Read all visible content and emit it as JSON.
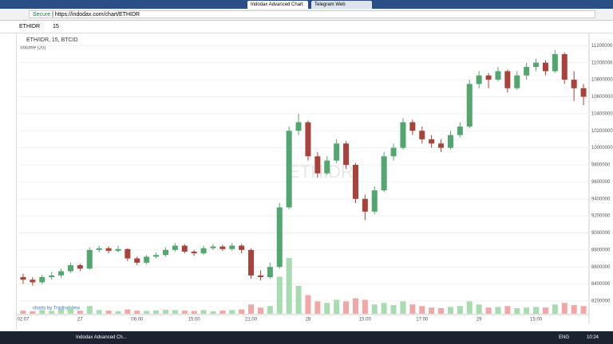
{
  "browser": {
    "tabs": [
      "Indodax Advanced Chart",
      "Telegram Web"
    ],
    "secure": "Secure",
    "url": "https://indodax.com/chart/ETHIDR"
  },
  "toolbar": {
    "symbol": "ETHIDR",
    "interval": "15"
  },
  "chart_data": {
    "type": "candlestick",
    "title": "ETH/IDR, 15, BTCID",
    "volume_title": "Volume (20)",
    "watermark": "ETHIDR",
    "credit": "charts by TradingView",
    "up_color": "#53a66f",
    "down_color": "#a8423b",
    "volume_up_color": "#a8dbb0",
    "volume_down_color": "#f2a7a7",
    "categories": [
      "02:07",
      null,
      null,
      null,
      null,
      null,
      "27",
      null,
      null,
      null,
      null,
      null,
      "06:00",
      null,
      null,
      null,
      null,
      null,
      "15:00",
      null,
      null,
      null,
      null,
      null,
      "21:00",
      null,
      null,
      null,
      null,
      null,
      "28",
      null,
      null,
      null,
      null,
      null,
      "15:00",
      null,
      null,
      null,
      null,
      null,
      "17:00",
      null,
      null,
      null,
      null,
      null,
      "29",
      null,
      null,
      null,
      null,
      null,
      "15:00",
      null,
      null,
      null,
      null,
      null
    ],
    "open": [
      8480000,
      8450000,
      8420000,
      8480000,
      8500000,
      8550000,
      8620000,
      8580000,
      8800000,
      8820000,
      8790000,
      8810000,
      8700000,
      8650000,
      8720000,
      8740000,
      8800000,
      8850000,
      8780000,
      8760000,
      8820000,
      8840000,
      8810000,
      8850000,
      8800000,
      8500000,
      8480000,
      8600000,
      9300000,
      10200000,
      10300000,
      9900000,
      9700000,
      9850000,
      10050000,
      9800000,
      9400000,
      9250000,
      9500000,
      9900000,
      10000000,
      10300000,
      10200000,
      10100000,
      10050000,
      10000000,
      10150000,
      10250000,
      10750000,
      10850000,
      10800000,
      10900000,
      10700000,
      10850000,
      10950000,
      11000000,
      10900000,
      11100000,
      10800000,
      10700000
    ],
    "high": [
      8520000,
      8480000,
      8510000,
      8540000,
      8580000,
      8650000,
      8640000,
      8830000,
      8850000,
      8840000,
      8850000,
      8820000,
      8720000,
      8740000,
      8770000,
      8830000,
      8880000,
      8870000,
      8800000,
      8850000,
      8870000,
      8860000,
      8880000,
      8870000,
      8820000,
      8560000,
      8650000,
      9350000,
      10250000,
      10400000,
      10320000,
      9950000,
      9900000,
      10100000,
      10080000,
      9820000,
      9450000,
      9550000,
      9950000,
      10050000,
      10350000,
      10330000,
      10250000,
      10150000,
      10100000,
      10200000,
      10300000,
      10800000,
      10900000,
      10880000,
      10950000,
      10920000,
      10900000,
      11000000,
      11050000,
      11030000,
      11150000,
      11120000,
      10900000,
      10750000
    ],
    "low": [
      8400000,
      8380000,
      8400000,
      8450000,
      8470000,
      8530000,
      8550000,
      8570000,
      8770000,
      8760000,
      8770000,
      8670000,
      8620000,
      8630000,
      8700000,
      8720000,
      8780000,
      8760000,
      8730000,
      8740000,
      8800000,
      8790000,
      8790000,
      8760000,
      8460000,
      8440000,
      8460000,
      8580000,
      9280000,
      10150000,
      9850000,
      9650000,
      9680000,
      9820000,
      9750000,
      9350000,
      9150000,
      9220000,
      9480000,
      9850000,
      9980000,
      10150000,
      10050000,
      10000000,
      9950000,
      9980000,
      10120000,
      10230000,
      10700000,
      10700000,
      10780000,
      10650000,
      10680000,
      10800000,
      10900000,
      10850000,
      10880000,
      10750000,
      10550000,
      10500000
    ],
    "close": [
      8450000,
      8420000,
      8480000,
      8500000,
      8550000,
      8620000,
      8580000,
      8800000,
      8820000,
      8790000,
      8810000,
      8700000,
      8650000,
      8720000,
      8740000,
      8800000,
      8850000,
      8780000,
      8760000,
      8820000,
      8840000,
      8810000,
      8850000,
      8800000,
      8500000,
      8480000,
      8600000,
      9300000,
      10200000,
      10300000,
      9900000,
      9700000,
      9850000,
      10050000,
      9800000,
      9400000,
      9250000,
      9500000,
      9900000,
      10000000,
      10300000,
      10200000,
      10100000,
      10050000,
      10000000,
      10150000,
      10250000,
      10750000,
      10850000,
      10800000,
      10900000,
      10700000,
      10850000,
      10950000,
      11000000,
      10900000,
      11100000,
      10800000,
      10700000,
      10600000
    ],
    "volume": [
      10,
      8,
      12,
      9,
      15,
      20,
      10,
      25,
      12,
      10,
      8,
      14,
      10,
      9,
      11,
      13,
      12,
      10,
      9,
      12,
      8,
      10,
      12,
      14,
      30,
      20,
      25,
      120,
      180,
      90,
      60,
      40,
      35,
      45,
      40,
      50,
      45,
      30,
      35,
      28,
      40,
      30,
      25,
      20,
      18,
      22,
      25,
      40,
      30,
      20,
      22,
      25,
      18,
      20,
      22,
      20,
      30,
      35,
      28,
      25
    ],
    "ylim": [
      8050000,
      11250000
    ],
    "yticks": [
      8200000,
      8400000,
      8600000,
      8800000,
      9000000,
      9200000,
      9400000,
      9600000,
      9800000,
      10000000,
      10200000,
      10400000,
      10600000,
      10800000,
      11000000,
      11200000
    ],
    "grid": true
  },
  "taskbar": {
    "apps": [
      "Indodax Advanced Ch..."
    ],
    "language": "ENG",
    "time": "10:24"
  }
}
